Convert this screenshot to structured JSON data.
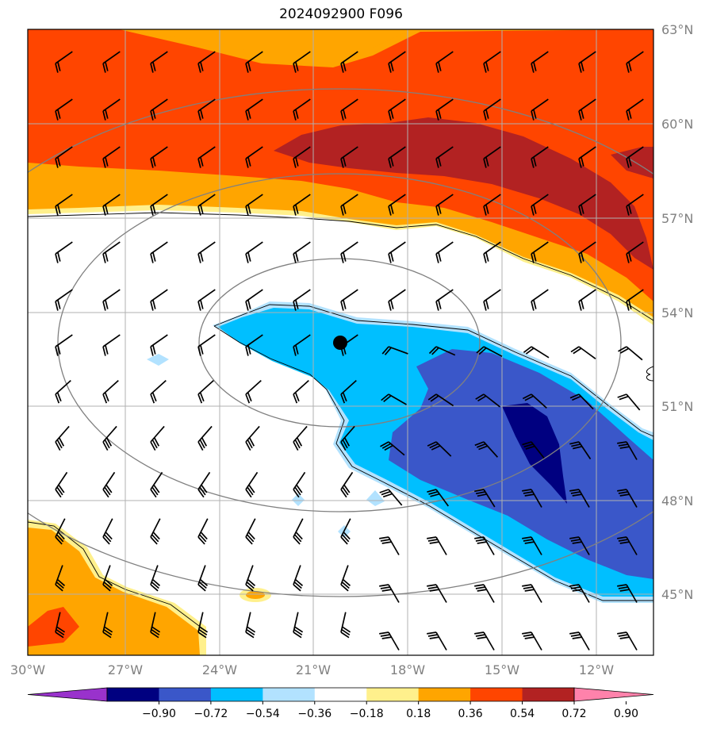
{
  "title": "2024092900 F096",
  "map": {
    "lat_labels": [
      "63°N",
      "60°N",
      "57°N",
      "54°N",
      "51°N",
      "48°N",
      "45°N"
    ],
    "lon_labels": [
      "30°W",
      "27°W",
      "24°W",
      "21°W",
      "18°W",
      "15°W",
      "12°W"
    ],
    "extent": {
      "lon": [
        -30,
        -10.6
      ],
      "lat": [
        43,
        63
      ]
    },
    "grid": true,
    "marker": "storm center",
    "field_colors": {
      "strong_positive": "#b22222",
      "positive": "#ff4500",
      "weak_positive": "#ffa500",
      "very_weak_positive": "#fff08c",
      "very_weak_negative": "#b2e2ff",
      "weak_negative": "#00bfff",
      "negative": "#3a57c9",
      "strong_negative": "#000080"
    }
  },
  "colorbar": {
    "ticks": [
      "−0.90",
      "−0.72",
      "−0.54",
      "−0.36",
      "−0.18",
      "0.18",
      "0.36",
      "0.54",
      "0.72",
      "0.90"
    ],
    "colors": [
      "#9932cc",
      "#000080",
      "#3a57c9",
      "#00bfff",
      "#b2e2ff",
      "#ffffff",
      "#fff08c",
      "#ffa500",
      "#ff4500",
      "#b22222",
      "#ff82ab"
    ],
    "extend": "both"
  }
}
